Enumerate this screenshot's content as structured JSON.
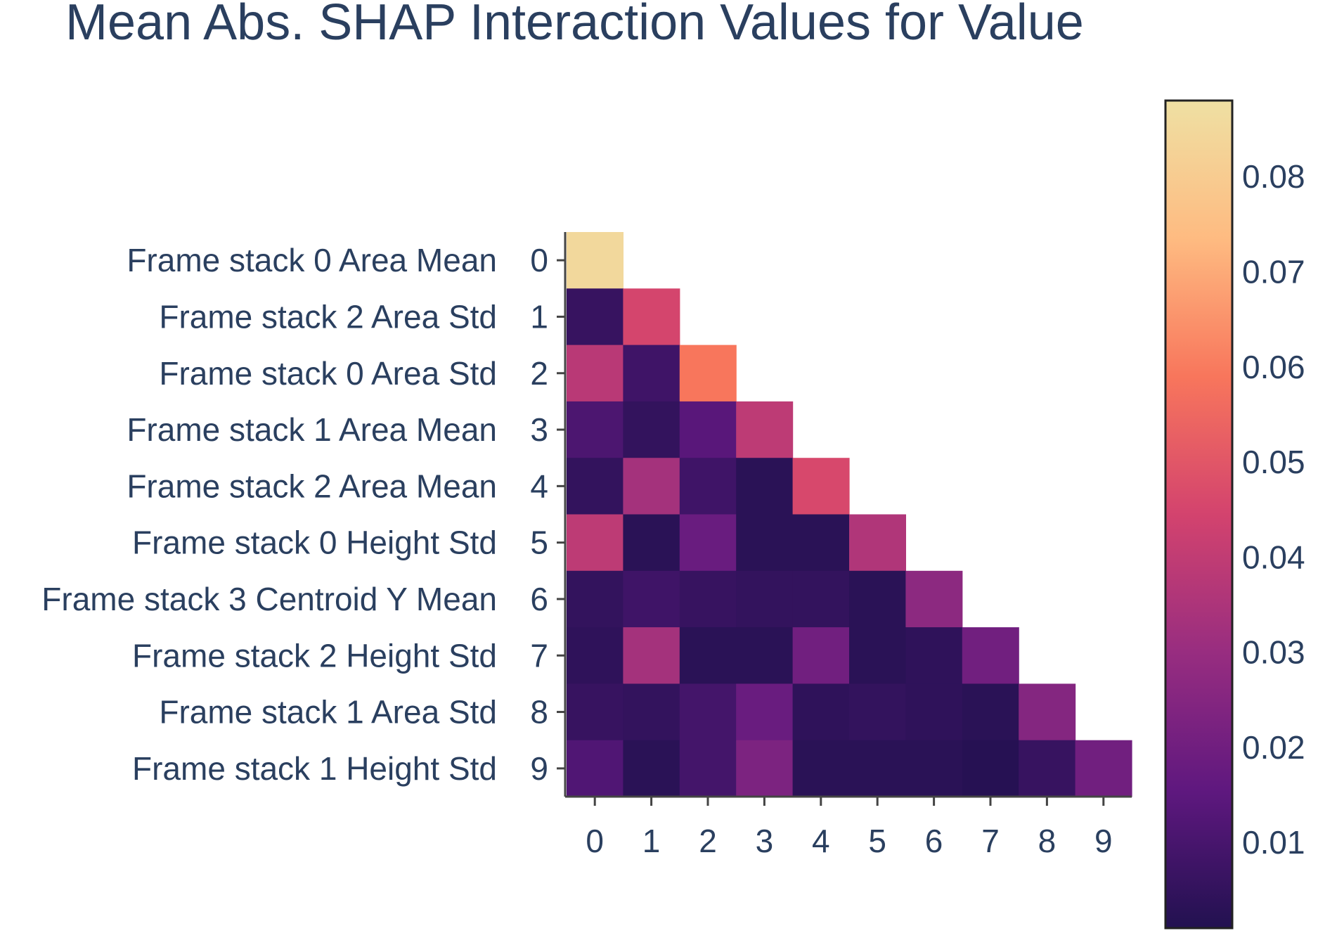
{
  "chart_data": {
    "type": "heatmap",
    "title": "Mean Abs. SHAP Interaction Values for Value",
    "row_labels": [
      "Frame stack 0 Area Mean",
      "Frame stack 2 Area Std",
      "Frame stack 0 Area Std",
      "Frame stack 1 Area Mean",
      "Frame stack 2 Area Mean",
      "Frame stack 0 Height Std",
      "Frame stack 3 Centroid Y Mean",
      "Frame stack 2 Height Std",
      "Frame stack 1 Area Std",
      "Frame stack 1 Height Std"
    ],
    "x_ticks": [
      "0",
      "1",
      "2",
      "3",
      "4",
      "5",
      "6",
      "7",
      "8",
      "9"
    ],
    "y_ticks": [
      "0",
      "1",
      "2",
      "3",
      "4",
      "5",
      "6",
      "7",
      "8",
      "9"
    ],
    "values": [
      [
        0.085
      ],
      [
        0.006,
        0.045
      ],
      [
        0.038,
        0.008,
        0.059
      ],
      [
        0.011,
        0.005,
        0.014,
        0.039
      ],
      [
        0.005,
        0.033,
        0.008,
        0.003,
        0.046
      ],
      [
        0.039,
        0.003,
        0.018,
        0.003,
        0.003,
        0.036
      ],
      [
        0.005,
        0.008,
        0.006,
        0.005,
        0.005,
        0.003,
        0.027
      ],
      [
        0.004,
        0.033,
        0.003,
        0.003,
        0.02,
        0.003,
        0.004,
        0.02
      ],
      [
        0.006,
        0.005,
        0.009,
        0.018,
        0.004,
        0.005,
        0.004,
        0.003,
        0.025
      ],
      [
        0.012,
        0.003,
        0.009,
        0.023,
        0.003,
        0.003,
        0.003,
        0.002,
        0.006,
        0.02
      ]
    ],
    "colorscale": [
      "#221150",
      "#5f187f",
      "#982d80",
      "#d3436e",
      "#f8765c",
      "#febb81",
      "#efe0a3"
    ],
    "zlim": [
      0.001,
      0.088
    ],
    "colorbar_ticks": [
      "0.01",
      "0.02",
      "0.03",
      "0.04",
      "0.05",
      "0.06",
      "0.07",
      "0.08"
    ],
    "colorbar_tick_values": [
      0.01,
      0.02,
      0.03,
      0.04,
      0.05,
      0.06,
      0.07,
      0.08
    ]
  }
}
